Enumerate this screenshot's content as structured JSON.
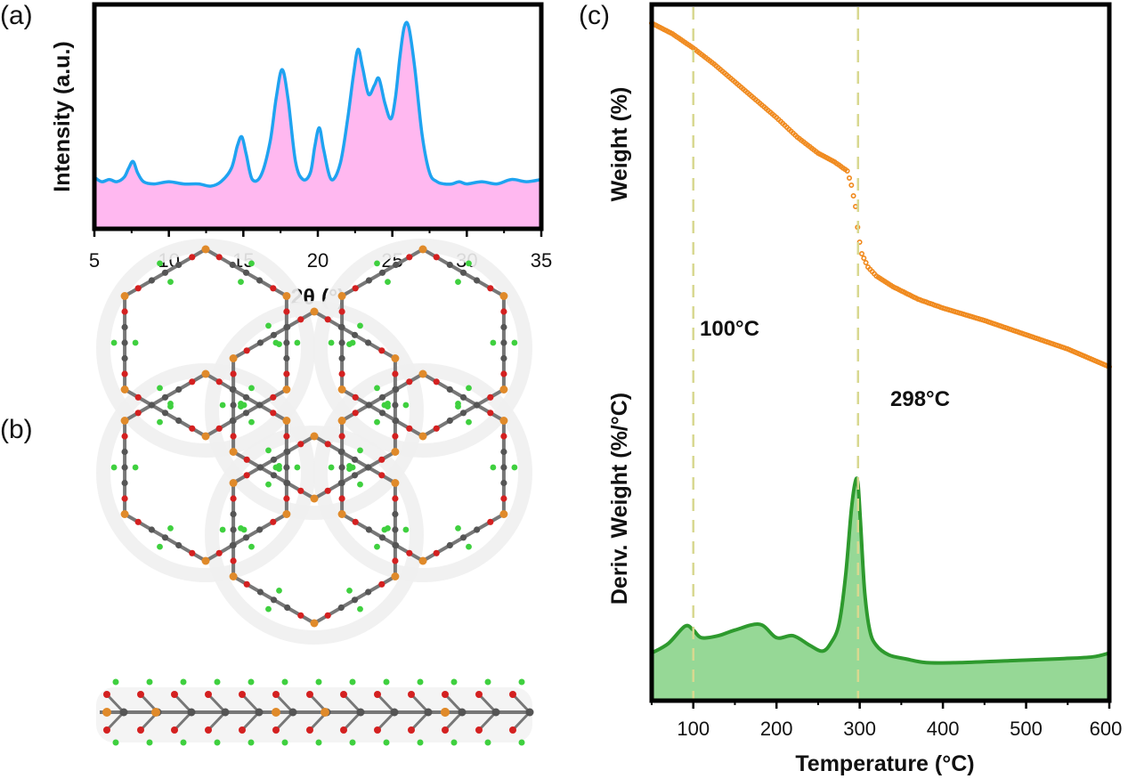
{
  "panels": {
    "a_label": "(a)",
    "b_label": "(b)",
    "c_label": "(c)"
  },
  "chart_data": [
    {
      "type": "area",
      "panel": "(a)",
      "xlabel": "2θ (°)",
      "ylabel": "Intensity (a.u.)",
      "xlim": [
        5,
        35
      ],
      "ylim": [
        0,
        1
      ],
      "xticks": [
        5,
        10,
        15,
        20,
        25,
        30,
        35
      ],
      "colors": {
        "line": "#1fa3f0",
        "fill": "#ffb8f0"
      },
      "series": [
        {
          "x": [
            5,
            5.5,
            6,
            6.5,
            7,
            7.3,
            7.6,
            7.9,
            8.3,
            9,
            10,
            11,
            12,
            12.8,
            13.5,
            14.2,
            14.6,
            14.9,
            15.2,
            15.6,
            16.2,
            16.8,
            17.2,
            17.6,
            18.0,
            18.5,
            19.0,
            19.5,
            19.8,
            20.1,
            20.4,
            20.9,
            21.5,
            22.0,
            22.4,
            22.7,
            23.0,
            23.4,
            23.8,
            24.1,
            24.5,
            24.9,
            25.2,
            25.5,
            25.8,
            26.1,
            26.5,
            27.0,
            27.5,
            28.0,
            28.5,
            29.0,
            29.5,
            30.0,
            31.0,
            32.0,
            33.0,
            34.0,
            35.0
          ],
          "values": [
            0.23,
            0.21,
            0.22,
            0.21,
            0.23,
            0.27,
            0.3,
            0.25,
            0.21,
            0.2,
            0.21,
            0.2,
            0.2,
            0.19,
            0.21,
            0.27,
            0.37,
            0.41,
            0.33,
            0.22,
            0.24,
            0.39,
            0.58,
            0.71,
            0.58,
            0.3,
            0.22,
            0.25,
            0.37,
            0.45,
            0.35,
            0.22,
            0.29,
            0.49,
            0.69,
            0.8,
            0.72,
            0.6,
            0.64,
            0.67,
            0.56,
            0.49,
            0.58,
            0.76,
            0.9,
            0.9,
            0.72,
            0.42,
            0.25,
            0.21,
            0.2,
            0.2,
            0.21,
            0.2,
            0.21,
            0.2,
            0.22,
            0.21,
            0.22
          ]
        }
      ]
    },
    {
      "type": "scatter",
      "panel": "(c)",
      "xlabel": "Temperature (°C)",
      "ylabel": "Weight (%)",
      "xlim": [
        50,
        600
      ],
      "ylim": [
        0,
        1
      ],
      "xticks": [
        100,
        200,
        300,
        400,
        500,
        600
      ],
      "colors": {
        "marker": "#f08a1e"
      },
      "series": [
        {
          "x": [
            50,
            75,
            100,
            125,
            150,
            175,
            200,
            225,
            250,
            270,
            285,
            290,
            295,
            298,
            302,
            310,
            320,
            340,
            370,
            400,
            450,
            500,
            550,
            600
          ],
          "values": [
            0.985,
            0.955,
            0.915,
            0.87,
            0.82,
            0.77,
            0.72,
            0.665,
            0.62,
            0.595,
            0.57,
            0.53,
            0.47,
            0.4,
            0.34,
            0.3,
            0.275,
            0.245,
            0.21,
            0.185,
            0.15,
            0.11,
            0.07,
            0.02
          ]
        }
      ]
    },
    {
      "type": "area",
      "panel": "(c)",
      "xlabel": "Temperature (°C)",
      "ylabel": "Deriv. Weight (%/°C)",
      "xlim": [
        50,
        600
      ],
      "ylim": [
        0,
        1
      ],
      "xticks": [
        100,
        200,
        300,
        400,
        500,
        600
      ],
      "colors": {
        "line": "#2e9a2e",
        "fill": "#96d896"
      },
      "series": [
        {
          "x": [
            50,
            70,
            90,
            100,
            110,
            130,
            150,
            180,
            200,
            220,
            240,
            255,
            265,
            275,
            283,
            290,
            295,
            298,
            301,
            306,
            312,
            320,
            335,
            355,
            380,
            420,
            480,
            540,
            580,
            600
          ],
          "values": [
            0.1,
            0.15,
            0.24,
            0.22,
            0.18,
            0.19,
            0.22,
            0.25,
            0.18,
            0.19,
            0.14,
            0.11,
            0.15,
            0.25,
            0.5,
            0.85,
            1.0,
            0.98,
            0.78,
            0.42,
            0.22,
            0.14,
            0.09,
            0.07,
            0.05,
            0.05,
            0.06,
            0.07,
            0.08,
            0.1
          ]
        }
      ],
      "annotations": [
        {
          "x": 100,
          "text": "100°C"
        },
        {
          "x": 298,
          "text": "298°C"
        }
      ]
    }
  ]
}
